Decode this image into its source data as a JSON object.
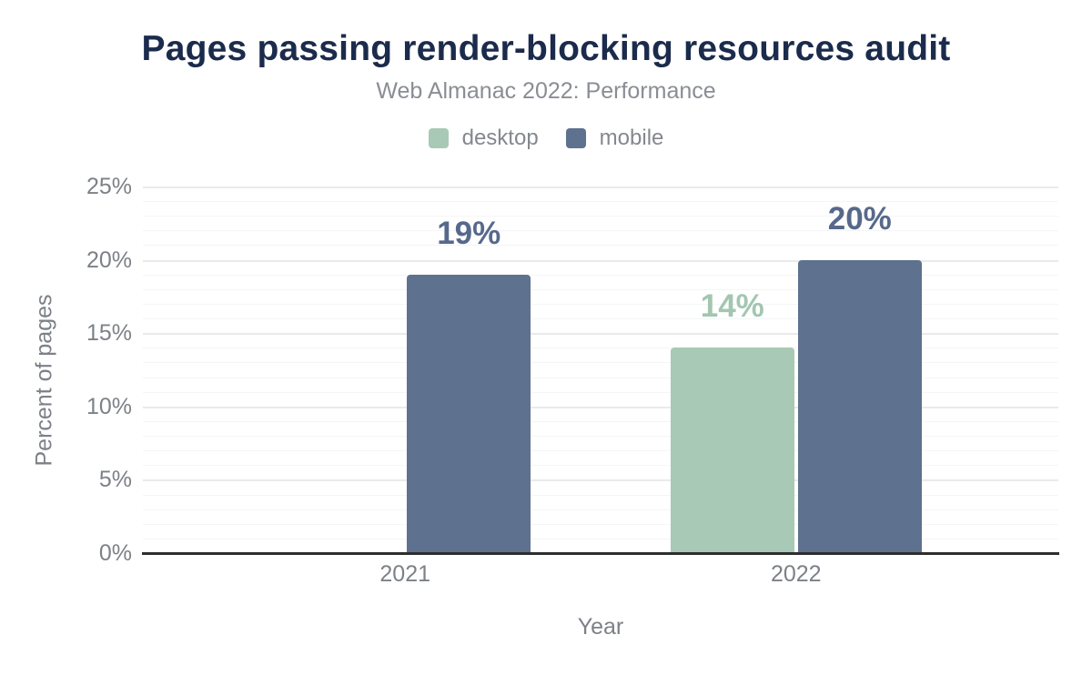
{
  "chart_data": {
    "type": "bar",
    "title": "Pages passing render-blocking resources audit",
    "subtitle": "Web Almanac 2022: Performance",
    "xlabel": "Year",
    "ylabel": "Percent of pages",
    "categories": [
      "2021",
      "2022"
    ],
    "series": [
      {
        "name": "desktop",
        "color": "#a8c9b6",
        "label_color": "#a3c6b1",
        "values": [
          null,
          14
        ],
        "data_labels": [
          "",
          "14%"
        ]
      },
      {
        "name": "mobile",
        "color": "#5e718e",
        "label_color": "#57698b",
        "values": [
          19,
          20
        ],
        "data_labels": [
          "19%",
          "20%"
        ]
      }
    ],
    "ylim": [
      0,
      25
    ],
    "yticks": [
      {
        "value": 0,
        "label": "0%"
      },
      {
        "value": 5,
        "label": "5%"
      },
      {
        "value": 10,
        "label": "10%"
      },
      {
        "value": 15,
        "label": "15%"
      },
      {
        "value": 20,
        "label": "20%"
      },
      {
        "value": 25,
        "label": "25%"
      }
    ],
    "grid": {
      "on": true,
      "major_step": 5,
      "minor_step": 1
    },
    "legend_position": "top"
  },
  "palette": {
    "background": "#ffffff",
    "title_text": "#1b2b4c",
    "subtitle_text": "#8a8e94",
    "axis_text": "#7d8187",
    "legend_text": "#84888e",
    "axis_line": "#2e2e2e",
    "grid_major": "#e8eaed",
    "grid_minor": "#f4f5f6"
  }
}
